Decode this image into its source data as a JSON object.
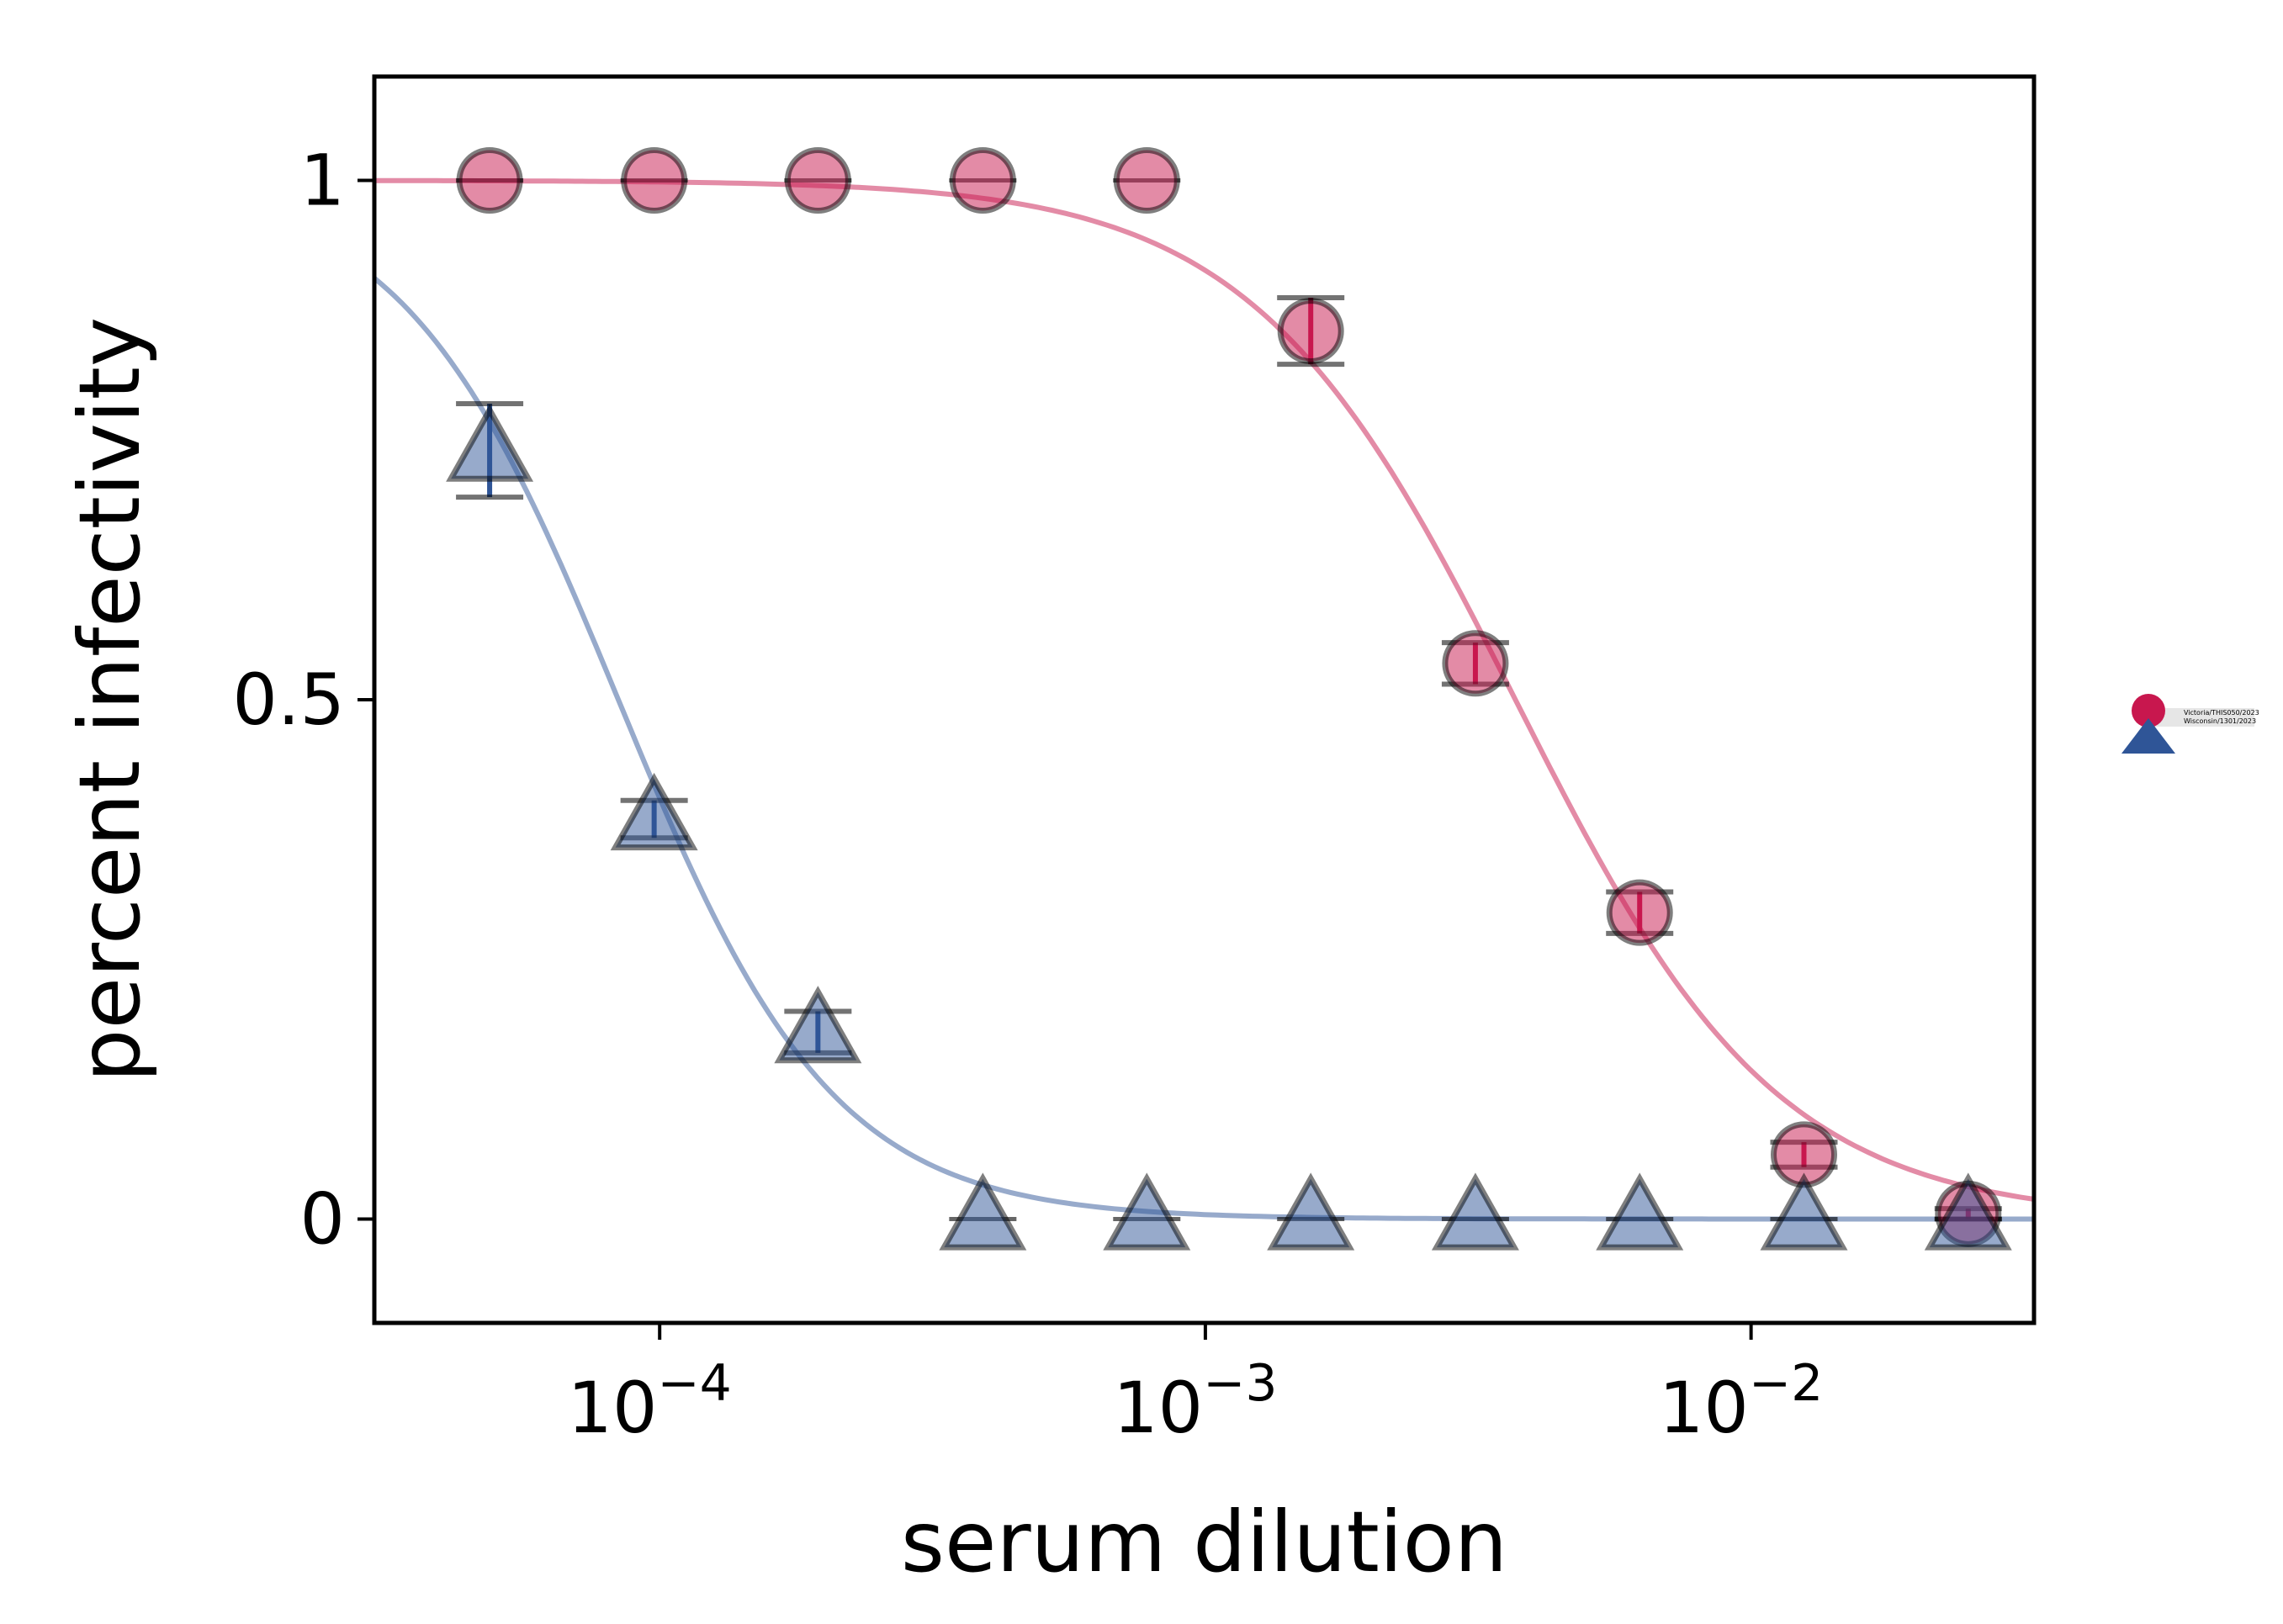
{
  "chart_data": {
    "type": "scatter",
    "title": "",
    "xlabel": "serum dilution",
    "ylabel": "percent infectivity",
    "xscale": "log",
    "xlim": [
      3e-05,
      0.033
    ],
    "ylim": [
      -0.1,
      1.1
    ],
    "x_ticks": [
      {
        "value": 0.0001,
        "base": "10",
        "exp": "−4"
      },
      {
        "value": 0.001,
        "base": "10",
        "exp": "−3"
      },
      {
        "value": 0.01,
        "base": "10",
        "exp": "−2"
      }
    ],
    "y_ticks": [
      {
        "value": 0,
        "label": "0"
      },
      {
        "value": 0.5,
        "label": "0.5"
      },
      {
        "value": 1,
        "label": "1"
      }
    ],
    "grid": false,
    "legend_position": "right",
    "series": [
      {
        "name": "Victoria/THIS050/2023",
        "marker": "circle",
        "color": "#C8174E",
        "x": [
          4.88e-05,
          9.77e-05,
          0.000195,
          0.000391,
          0.000781,
          0.00156,
          0.003125,
          0.00625,
          0.0125,
          0.025
        ],
        "y": [
          1.0,
          1.0,
          1.0,
          1.0,
          1.0,
          0.855,
          0.535,
          0.295,
          0.062,
          0.005
        ],
        "err": [
          0.0,
          0.0,
          0.0,
          0.0,
          0.0,
          0.032,
          0.02,
          0.02,
          0.012,
          0.005
        ],
        "curve": {
          "ic50": 0.0037,
          "hill": 1.8
        }
      },
      {
        "name": "Wisconsin/1301/2023",
        "marker": "triangle",
        "color": "#2F5597",
        "x": [
          4.88e-05,
          9.77e-05,
          0.000195,
          0.000391,
          0.000781,
          0.00156,
          0.003125,
          0.00625,
          0.0125,
          0.025
        ],
        "y": [
          0.74,
          0.385,
          0.18,
          0.0,
          0.0,
          0.0,
          0.0,
          0.0,
          0.0,
          0.0
        ],
        "err": [
          0.045,
          0.018,
          0.02,
          0.0,
          0.0,
          0.0,
          0.0,
          0.0,
          0.0,
          0.0
        ],
        "curve": {
          "ic50": 8.4e-05,
          "hill": 2.2
        }
      }
    ]
  }
}
